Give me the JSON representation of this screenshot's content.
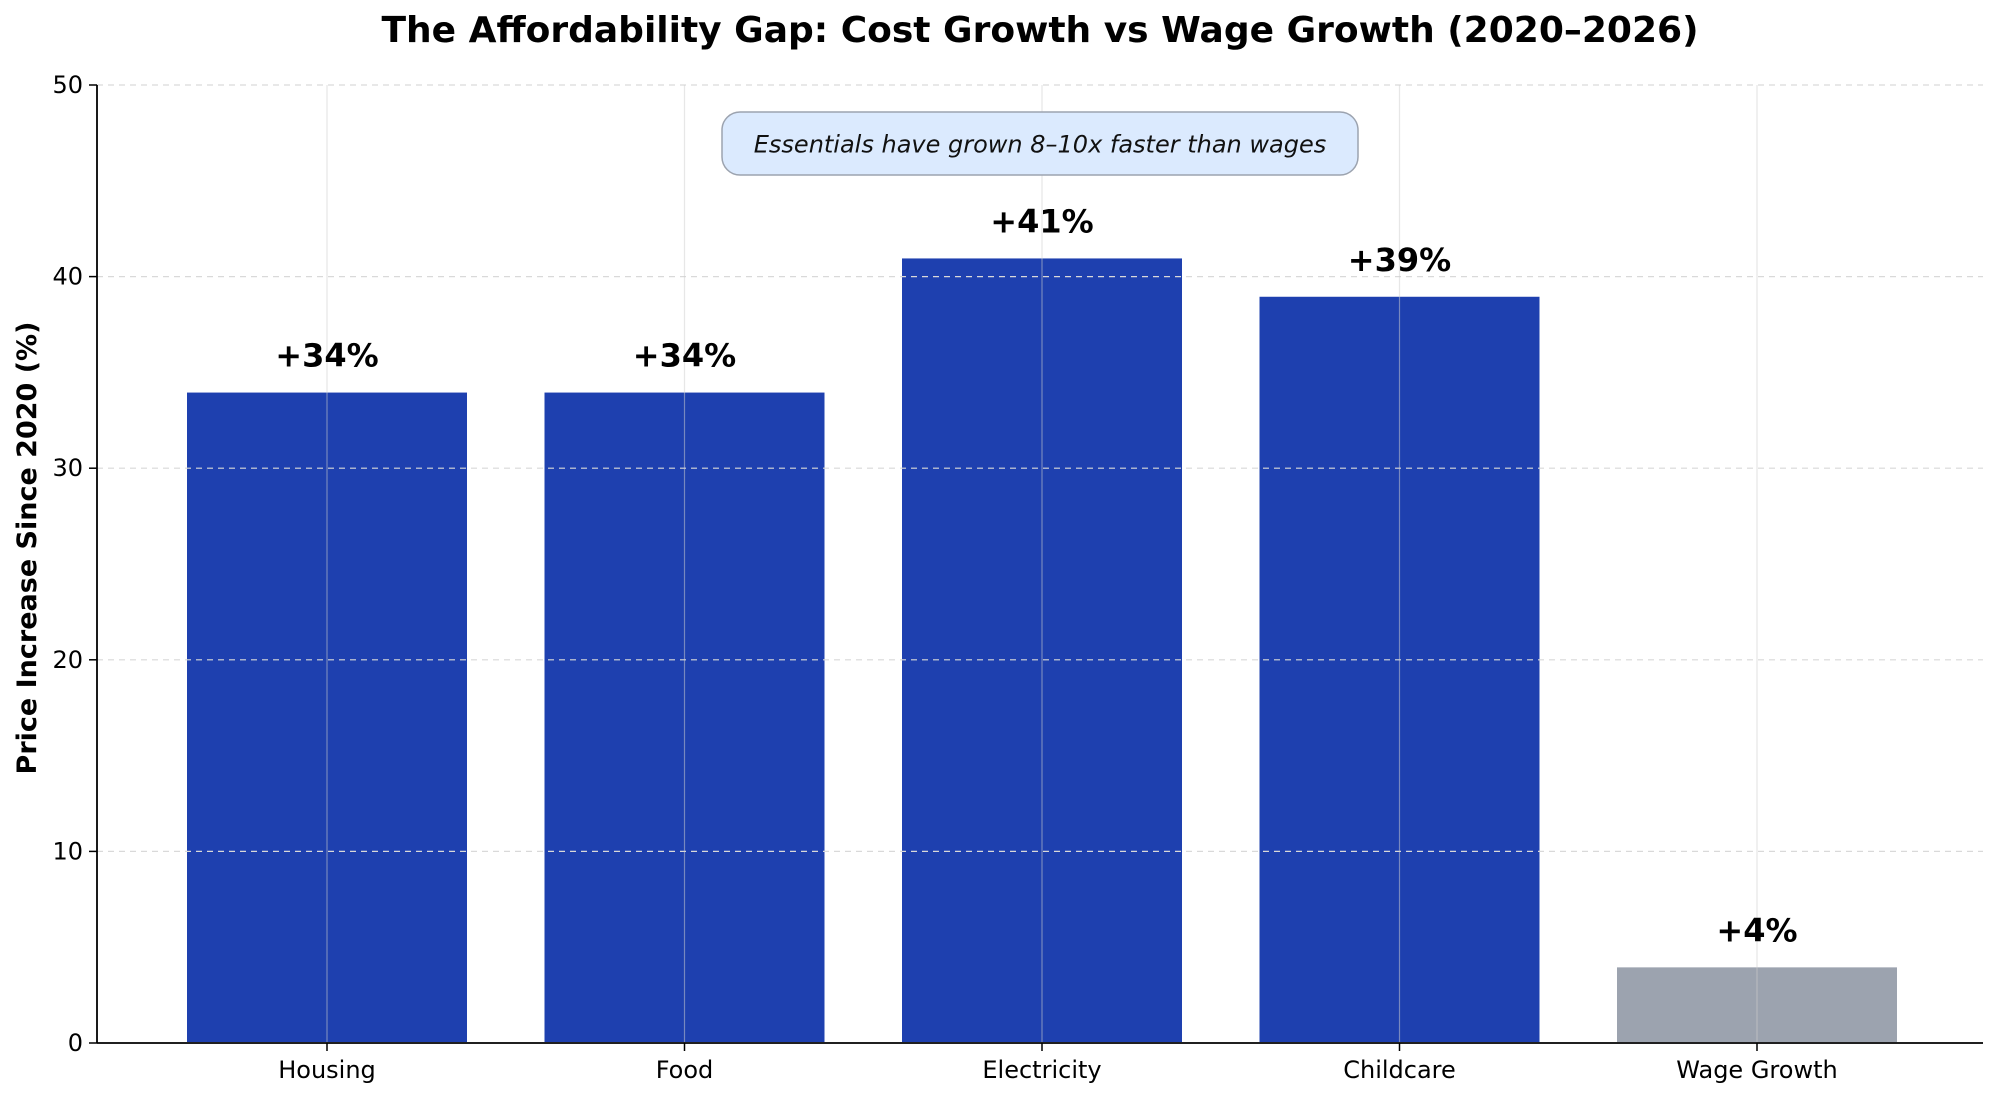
{
  "chart_data": {
    "type": "bar",
    "title": "The Affordability Gap: Cost Growth vs Wage Growth (2020–2026)",
    "xlabel": "",
    "ylabel": "Price Increase Since 2020 (%)",
    "categories": [
      "Housing",
      "Food",
      "Electricity",
      "Childcare",
      "Wage Growth"
    ],
    "values": [
      34,
      34,
      41,
      39,
      4
    ],
    "data_labels": [
      "+34%",
      "+34%",
      "+41%",
      "+39%",
      "+4%"
    ],
    "ylim": [
      0,
      50
    ],
    "yticks": [
      0,
      10,
      20,
      30,
      40,
      50
    ],
    "grid": true,
    "annotation": "Essentials have grown 8–10x faster than wages",
    "colors": {
      "cost": "#1e40af",
      "wage": "#9ca3af",
      "annotation_fill": "#dbeafe",
      "annotation_border": "#9ca3af"
    },
    "bar_colors": [
      "#1e40af",
      "#1e40af",
      "#1e40af",
      "#1e40af",
      "#9ca3af"
    ]
  }
}
